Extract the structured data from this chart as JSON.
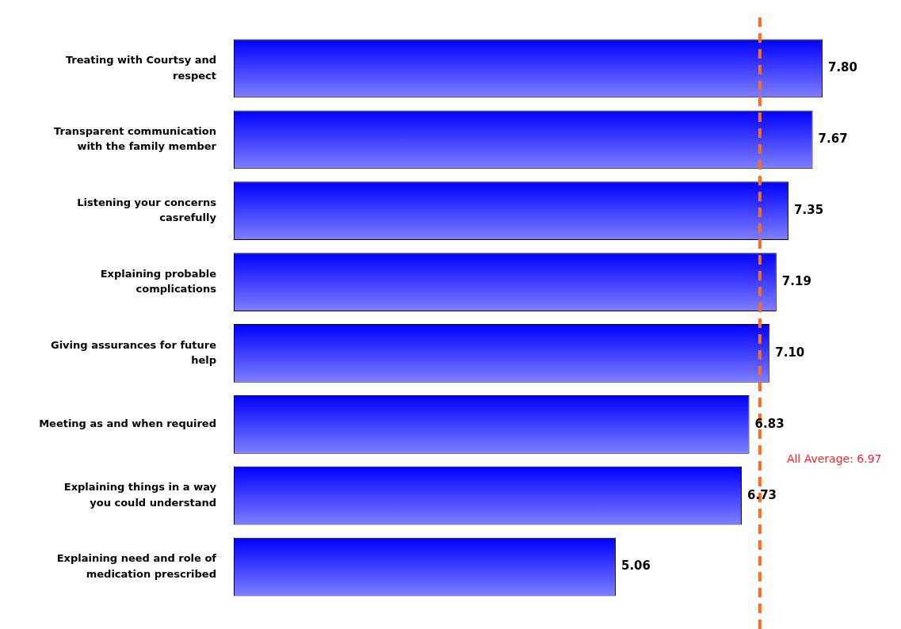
{
  "chart_data": {
    "type": "bar",
    "orientation": "horizontal",
    "categories": [
      "Treating with Courtsy and respect",
      "Transparent communication with the family member",
      "Listening your concerns casrefully",
      "Explaining probable complications",
      "Giving assurances for future help",
      "Meeting as and when required",
      "Explaining things in a way you could understand",
      "Explaining need and role of medication prescribed"
    ],
    "values": [
      7.8,
      7.67,
      7.35,
      7.19,
      7.1,
      6.83,
      6.73,
      5.06
    ],
    "color": "#0000ff",
    "value_labels": [
      "7.80",
      "7.67",
      "7.35",
      "7.19",
      "7.10",
      "6.83",
      "6.73",
      "5.06"
    ],
    "ref_lines": [
      {
        "axis": "x",
        "value": 6.97,
        "label": "All Average: 6.97",
        "color": "#ff6a21",
        "line_style": "dashed"
      }
    ],
    "legend": false
  }
}
